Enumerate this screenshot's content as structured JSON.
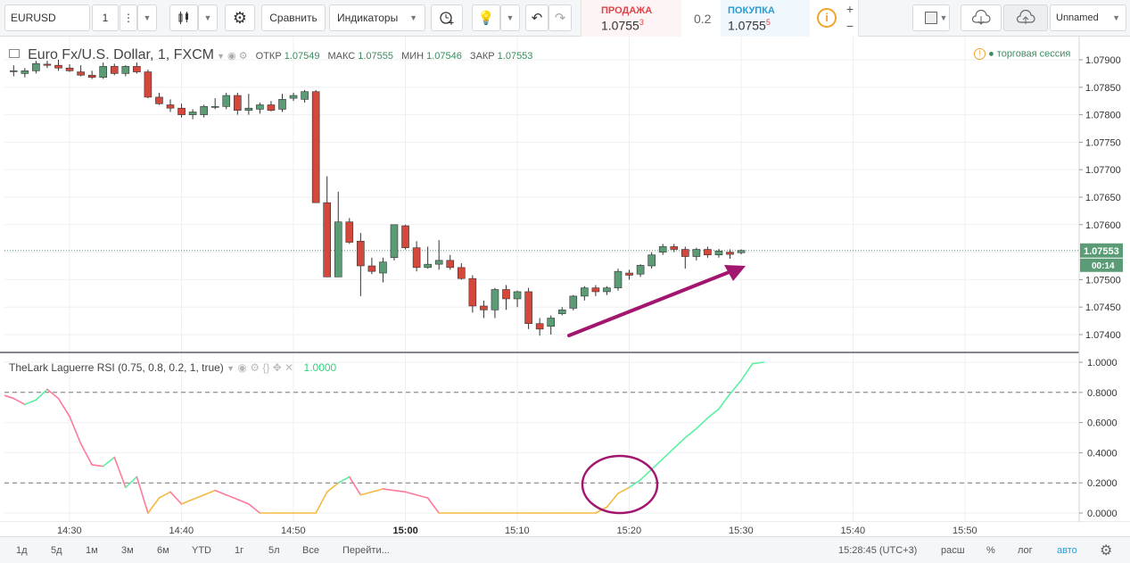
{
  "toolbar": {
    "symbol": "EURUSD",
    "interval": "1",
    "compare_label": "Сравнить",
    "indicators_label": "Индикаторы",
    "sell_label": "ПРОДАЖА",
    "sell_price": "1.0755",
    "sell_sup": "3",
    "spread": "0.2",
    "buy_label": "ПОКУПКА",
    "buy_price": "1.0755",
    "buy_sup": "5",
    "layout_name": "Unnamed"
  },
  "legend": {
    "title": "Euro Fx/U.S. Dollar, 1, FXCM",
    "open_label": "ОТКР",
    "open": "1.07549",
    "high_label": "МАКС",
    "high": "1.07555",
    "low_label": "МИН",
    "low": "1.07546",
    "close_label": "ЗАКР",
    "close": "1.07553",
    "session": "торговая сессия"
  },
  "rsi_legend": {
    "title": "TheLark Laguerre RSI (0.75, 0.8, 0.2, 1, true)",
    "value": "1.0000"
  },
  "price_axis": {
    "labels": [
      "1.07900",
      "1.07850",
      "1.07800",
      "1.07750",
      "1.07700",
      "1.07650",
      "1.07600",
      "1.07500",
      "1.07450",
      "1.07400"
    ],
    "current_price": "1.07553",
    "countdown": "00:14"
  },
  "rsi_axis": {
    "labels": [
      "1.0000",
      "0.8000",
      "0.6000",
      "0.4000",
      "0.2000",
      "0.0000"
    ]
  },
  "time_axis": {
    "labels": [
      "14:30",
      "14:40",
      "14:50",
      "15:00",
      "15:10",
      "15:20",
      "15:30",
      "15:40",
      "15:50"
    ]
  },
  "bottom_bar": {
    "ranges": [
      "1д",
      "5д",
      "1м",
      "3м",
      "6м",
      "YTD",
      "1г",
      "5л",
      "Все"
    ],
    "goto": "Перейти...",
    "clock": "15:28:45 (UTC+3)",
    "scale_labels": [
      "расш",
      "%",
      "лог",
      "авто"
    ]
  },
  "colors": {
    "up_candle": "#5b9c76",
    "down_candle": "#d5473b",
    "rsi_above": "#5df0a0",
    "rsi_below": "#ff7a9a",
    "rsi_zero": "#f5b942",
    "annotation": "#a3166f"
  },
  "chart_data": [
    {
      "type": "candlestick",
      "title": "Euro Fx/U.S. Dollar, 1, FXCM",
      "x_start": "14:25",
      "interval_minutes": 1,
      "candles": [
        {
          "o": 1.0788,
          "h": 1.0789,
          "l": 1.0787,
          "c": 1.0788
        },
        {
          "o": 1.07875,
          "h": 1.07885,
          "l": 1.07868,
          "c": 1.0788
        },
        {
          "o": 1.0788,
          "h": 1.07898,
          "l": 1.07875,
          "c": 1.07893
        },
        {
          "o": 1.07892,
          "h": 1.07898,
          "l": 1.07885,
          "c": 1.0789
        },
        {
          "o": 1.0789,
          "h": 1.079,
          "l": 1.0788,
          "c": 1.07885
        },
        {
          "o": 1.07885,
          "h": 1.07892,
          "l": 1.07878,
          "c": 1.0788
        },
        {
          "o": 1.07878,
          "h": 1.0789,
          "l": 1.0787,
          "c": 1.07872
        },
        {
          "o": 1.07872,
          "h": 1.0788,
          "l": 1.07865,
          "c": 1.07868
        },
        {
          "o": 1.07868,
          "h": 1.07895,
          "l": 1.07865,
          "c": 1.07888
        },
        {
          "o": 1.07888,
          "h": 1.07893,
          "l": 1.07872,
          "c": 1.07875
        },
        {
          "o": 1.07875,
          "h": 1.0789,
          "l": 1.0787,
          "c": 1.07888
        },
        {
          "o": 1.07888,
          "h": 1.07895,
          "l": 1.07875,
          "c": 1.07878
        },
        {
          "o": 1.07878,
          "h": 1.07882,
          "l": 1.0783,
          "c": 1.07832
        },
        {
          "o": 1.07832,
          "h": 1.0784,
          "l": 1.07818,
          "c": 1.0782
        },
        {
          "o": 1.07818,
          "h": 1.07828,
          "l": 1.07805,
          "c": 1.07812
        },
        {
          "o": 1.07812,
          "h": 1.0782,
          "l": 1.07795,
          "c": 1.078
        },
        {
          "o": 1.078,
          "h": 1.0781,
          "l": 1.07792,
          "c": 1.07805
        },
        {
          "o": 1.078,
          "h": 1.07818,
          "l": 1.07795,
          "c": 1.07815
        },
        {
          "o": 1.07815,
          "h": 1.0783,
          "l": 1.0781,
          "c": 1.07815
        },
        {
          "o": 1.07815,
          "h": 1.0784,
          "l": 1.0781,
          "c": 1.07835
        },
        {
          "o": 1.07835,
          "h": 1.0784,
          "l": 1.078,
          "c": 1.07808
        },
        {
          "o": 1.07808,
          "h": 1.07838,
          "l": 1.078,
          "c": 1.07812
        },
        {
          "o": 1.0781,
          "h": 1.07822,
          "l": 1.07802,
          "c": 1.07818
        },
        {
          "o": 1.07818,
          "h": 1.07825,
          "l": 1.07806,
          "c": 1.07808
        },
        {
          "o": 1.0781,
          "h": 1.07838,
          "l": 1.07805,
          "c": 1.07828
        },
        {
          "o": 1.0783,
          "h": 1.0784,
          "l": 1.07825,
          "c": 1.07835
        },
        {
          "o": 1.07828,
          "h": 1.07845,
          "l": 1.07822,
          "c": 1.07842
        },
        {
          "o": 1.07842,
          "h": 1.07845,
          "l": 1.0764,
          "c": 1.0764
        },
        {
          "o": 1.0764,
          "h": 1.07688,
          "l": 1.07505,
          "c": 1.07505
        },
        {
          "o": 1.07505,
          "h": 1.0766,
          "l": 1.07505,
          "c": 1.07605
        },
        {
          "o": 1.07605,
          "h": 1.07612,
          "l": 1.07565,
          "c": 1.07568
        },
        {
          "o": 1.0757,
          "h": 1.07585,
          "l": 1.0747,
          "c": 1.07525
        },
        {
          "o": 1.07525,
          "h": 1.0754,
          "l": 1.0751,
          "c": 1.07515
        },
        {
          "o": 1.07512,
          "h": 1.0754,
          "l": 1.07495,
          "c": 1.07532
        },
        {
          "o": 1.0754,
          "h": 1.076,
          "l": 1.07535,
          "c": 1.076
        },
        {
          "o": 1.07598,
          "h": 1.076,
          "l": 1.07555,
          "c": 1.07558
        },
        {
          "o": 1.07558,
          "h": 1.0757,
          "l": 1.07515,
          "c": 1.07522
        },
        {
          "o": 1.07522,
          "h": 1.0756,
          "l": 1.0752,
          "c": 1.07528
        },
        {
          "o": 1.07528,
          "h": 1.07572,
          "l": 1.07518,
          "c": 1.07535
        },
        {
          "o": 1.07535,
          "h": 1.07545,
          "l": 1.07518,
          "c": 1.07522
        },
        {
          "o": 1.07522,
          "h": 1.0753,
          "l": 1.075,
          "c": 1.07502
        },
        {
          "o": 1.07502,
          "h": 1.07508,
          "l": 1.0744,
          "c": 1.07452
        },
        {
          "o": 1.07452,
          "h": 1.07462,
          "l": 1.0743,
          "c": 1.07445
        },
        {
          "o": 1.07445,
          "h": 1.07485,
          "l": 1.0743,
          "c": 1.07482
        },
        {
          "o": 1.07482,
          "h": 1.0749,
          "l": 1.07445,
          "c": 1.07465
        },
        {
          "o": 1.07465,
          "h": 1.0748,
          "l": 1.0745,
          "c": 1.07478
        },
        {
          "o": 1.07478,
          "h": 1.07485,
          "l": 1.0741,
          "c": 1.0742
        },
        {
          "o": 1.0742,
          "h": 1.0743,
          "l": 1.07398,
          "c": 1.0741
        },
        {
          "o": 1.07415,
          "h": 1.07435,
          "l": 1.074,
          "c": 1.0743
        },
        {
          "o": 1.07438,
          "h": 1.0745,
          "l": 1.07435,
          "c": 1.07445
        },
        {
          "o": 1.07448,
          "h": 1.07472,
          "l": 1.07444,
          "c": 1.0747
        },
        {
          "o": 1.0747,
          "h": 1.07488,
          "l": 1.07462,
          "c": 1.07485
        },
        {
          "o": 1.07485,
          "h": 1.0749,
          "l": 1.0747,
          "c": 1.07478
        },
        {
          "o": 1.07478,
          "h": 1.07488,
          "l": 1.07472,
          "c": 1.07485
        },
        {
          "o": 1.07485,
          "h": 1.0752,
          "l": 1.0748,
          "c": 1.07515
        },
        {
          "o": 1.07512,
          "h": 1.07518,
          "l": 1.075,
          "c": 1.07508
        },
        {
          "o": 1.0751,
          "h": 1.07528,
          "l": 1.07505,
          "c": 1.07526
        },
        {
          "o": 1.07525,
          "h": 1.0755,
          "l": 1.0752,
          "c": 1.07545
        },
        {
          "o": 1.0755,
          "h": 1.07565,
          "l": 1.07545,
          "c": 1.0756
        },
        {
          "o": 1.0756,
          "h": 1.07565,
          "l": 1.0755,
          "c": 1.07555
        },
        {
          "o": 1.07555,
          "h": 1.0756,
          "l": 1.0752,
          "c": 1.07542
        },
        {
          "o": 1.07542,
          "h": 1.07558,
          "l": 1.07535,
          "c": 1.07555
        },
        {
          "o": 1.07555,
          "h": 1.0756,
          "l": 1.0754,
          "c": 1.07545
        },
        {
          "o": 1.07545,
          "h": 1.07556,
          "l": 1.0754,
          "c": 1.07552
        },
        {
          "o": 1.0755,
          "h": 1.07555,
          "l": 1.07538,
          "c": 1.07546
        },
        {
          "o": 1.07549,
          "h": 1.07555,
          "l": 1.07546,
          "c": 1.07553
        }
      ],
      "ylim": [
        1.07375,
        1.07925
      ]
    },
    {
      "type": "line",
      "title": "TheLark Laguerre RSI (0.75, 0.8, 0.2, 1, true)",
      "values": [
        0.76,
        0.72,
        0.75,
        0.82,
        0.76,
        0.64,
        0.46,
        0.32,
        0.31,
        0.37,
        0.17,
        0.24,
        0.0,
        0.1,
        0.14,
        0.06,
        0.09,
        0.12,
        0.15,
        0.12,
        0.09,
        0.06,
        0.0,
        0.0,
        0.0,
        0.0,
        0.0,
        0.0,
        0.14,
        0.2,
        0.24,
        0.12,
        0.14,
        0.16,
        0.15,
        0.14,
        0.12,
        0.1,
        0.0,
        0.0,
        0.0,
        0.0,
        0.0,
        0.0,
        0.0,
        0.0,
        0.0,
        0.0,
        0.0,
        0.0,
        0.0,
        0.0,
        0.0,
        0.04,
        0.13,
        0.17,
        0.22,
        0.29,
        0.36,
        0.43,
        0.5,
        0.56,
        0.63,
        0.69,
        0.79,
        0.88,
        0.99,
        1.0
      ],
      "ylim": [
        -0.08,
        1.02
      ],
      "levels": [
        0.8,
        0.2
      ]
    }
  ]
}
